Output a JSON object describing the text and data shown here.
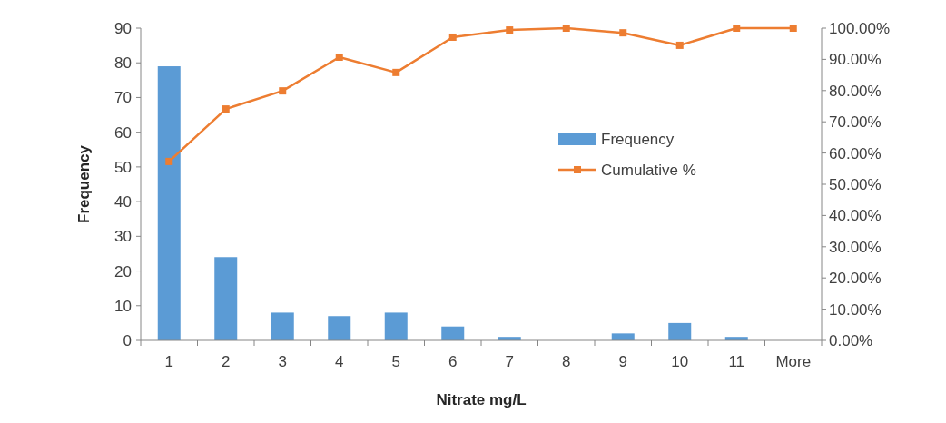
{
  "chart_data": {
    "type": "bar",
    "xlabel": "Nitrate mg/L",
    "ylabel": "Frequency",
    "categories": [
      "1",
      "2",
      "3",
      "4",
      "5",
      "6",
      "7",
      "8",
      "9",
      "10",
      "11",
      "More"
    ],
    "ylim": [
      0,
      90
    ],
    "yticks": [
      0,
      10,
      20,
      30,
      40,
      50,
      60,
      70,
      80,
      90
    ],
    "y2lim": [
      0,
      100
    ],
    "y2ticks": [
      {
        "value": 0,
        "label": "0.00%"
      },
      {
        "value": 10,
        "label": "10.00%"
      },
      {
        "value": 20,
        "label": "20.00%"
      },
      {
        "value": 30,
        "label": "30.00%"
      },
      {
        "value": 40,
        "label": "40.00%"
      },
      {
        "value": 50,
        "label": "50.00%"
      },
      {
        "value": 60,
        "label": "60.00%"
      },
      {
        "value": 70,
        "label": "70.00%"
      },
      {
        "value": 80,
        "label": "80.00%"
      },
      {
        "value": 90,
        "label": "90.00%"
      },
      {
        "value": 100,
        "label": "100.00%"
      }
    ],
    "series": [
      {
        "name": "Frequency",
        "color": "#5b9bd5",
        "values": [
          79,
          24,
          8,
          7,
          8,
          4,
          1,
          0,
          2,
          5,
          1,
          0
        ]
      },
      {
        "name": "Cumulative %",
        "type": "line",
        "axis": "y2",
        "color": "#ed7d31",
        "values": [
          57.3,
          74.1,
          79.9,
          90.7,
          85.8,
          97.1,
          99.4,
          100,
          98.5,
          94.5,
          100,
          100
        ]
      }
    ],
    "marker": "square",
    "legend": "right",
    "grid": false
  }
}
